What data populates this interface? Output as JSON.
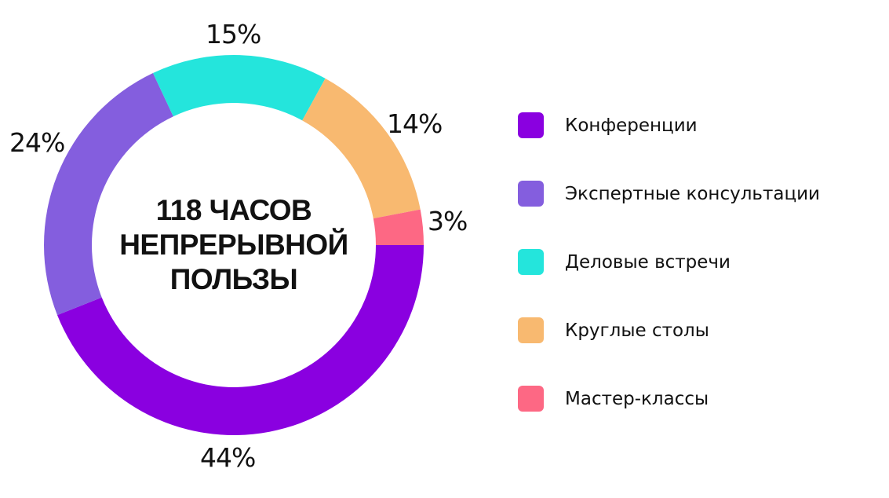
{
  "chart_data": {
    "type": "pie",
    "subtype": "donut",
    "title": "118 ЧАСОВ НЕПРЕРЫВНОЙ ПОЛЬЗЫ",
    "center_label_lines": [
      "118 ЧАСОВ",
      "НЕПРЕРЫВНОЙ",
      "ПОЛЬЗЫ"
    ],
    "categories": [
      "Конференции",
      "Экспертные консультации",
      "Деловые встречи",
      "Круглые столы",
      "Мастер-классы"
    ],
    "values": [
      44,
      24,
      15,
      14,
      3
    ],
    "value_labels": [
      "44%",
      "24%",
      "15%",
      "14%",
      "3%"
    ],
    "colors": [
      "#8a00e0",
      "#845ede",
      "#24e5dc",
      "#f8b970",
      "#fd6884"
    ],
    "legend_position": "right",
    "start_angle": "3 o'clock, clockwise"
  },
  "legend": {
    "items": [
      {
        "label": "Конференции",
        "color": "#8a00e0"
      },
      {
        "label": "Экспертные консультации",
        "color": "#845ede"
      },
      {
        "label": "Деловые встречи",
        "color": "#24e5dc"
      },
      {
        "label": "Круглые столы",
        "color": "#f8b970"
      },
      {
        "label": "Мастер-классы",
        "color": "#fd6884"
      }
    ]
  }
}
